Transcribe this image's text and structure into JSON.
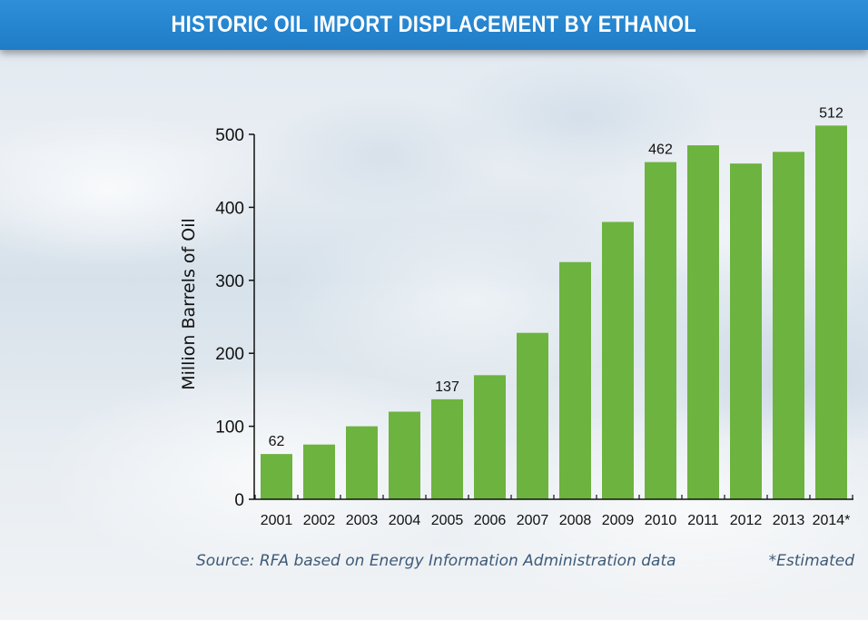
{
  "title": "HISTORIC OIL IMPORT DISPLACEMENT BY ETHANOL",
  "source_note": "Source: RFA based on Energy Information Administration data",
  "estimated_note": "*Estimated",
  "colors": {
    "title_bar": "#1f7cc7",
    "bar": "#6db33f",
    "axis": "#111111"
  },
  "chart_data": {
    "type": "bar",
    "title": "HISTORIC OIL IMPORT DISPLACEMENT BY ETHANOL",
    "xlabel": "",
    "ylabel": "Million Barrels of Oil",
    "ylim": [
      0,
      500
    ],
    "yticks": [
      0,
      100,
      200,
      300,
      400,
      500
    ],
    "grid": false,
    "categories": [
      "2001",
      "2002",
      "2003",
      "2004",
      "2005",
      "2006",
      "2007",
      "2008",
      "2009",
      "2010",
      "2011",
      "2012",
      "2013",
      "2014*"
    ],
    "values": [
      62,
      75,
      100,
      120,
      137,
      170,
      228,
      325,
      380,
      462,
      485,
      460,
      476,
      512
    ],
    "data_labels": [
      {
        "category": "2001",
        "text": "62"
      },
      {
        "category": "2005",
        "text": "137"
      },
      {
        "category": "2010",
        "text": "462"
      },
      {
        "category": "2014*",
        "text": "512"
      }
    ]
  }
}
